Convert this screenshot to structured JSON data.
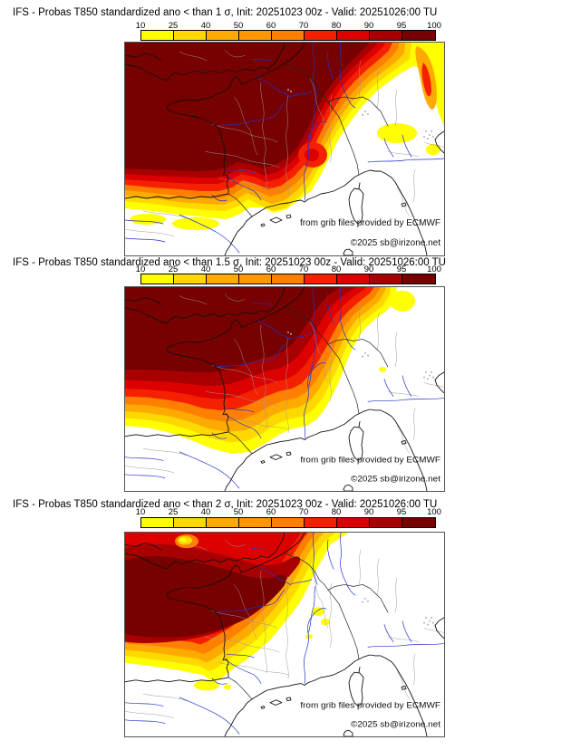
{
  "colorbar": {
    "tick_labels": [
      "10",
      "25",
      "40",
      "50",
      "60",
      "70",
      "80",
      "90",
      "95",
      "100"
    ],
    "segment_colors": [
      "#FFFF00",
      "#FFD800",
      "#FFAA00",
      "#FF9800",
      "#FF8000",
      "#F42000",
      "#DC0000",
      "#A80000",
      "#770000"
    ]
  },
  "palette_note": "probability (%) shading from yellow (low) to dark maroon (high)",
  "panels": [
    {
      "title": "IFS - Probas T850  standardized ano < than 1 σ, Init: 20251023 00z - Valid: 20251026:00 TU",
      "credit_ecmwf": "from grib files provided by ECMWF",
      "credit_copyright": "©2025 sb@irizone.net"
    },
    {
      "title": "IFS - Probas T850  standardized ano < than 1.5 σ, Init: 20251023 00z - Valid: 20251026:00 TU",
      "credit_ecmwf": "from grib files provided by ECMWF",
      "credit_copyright": "©2025 sb@irizone.net"
    },
    {
      "title": "IFS - Probas T850  standardized ano < than 2 σ, Init: 20251023 00z - Valid: 20251026:00 TU",
      "credit_ecmwf": "from grib files provided by ECMWF",
      "credit_copyright": "©2025 sb@irizone.net"
    }
  ]
}
